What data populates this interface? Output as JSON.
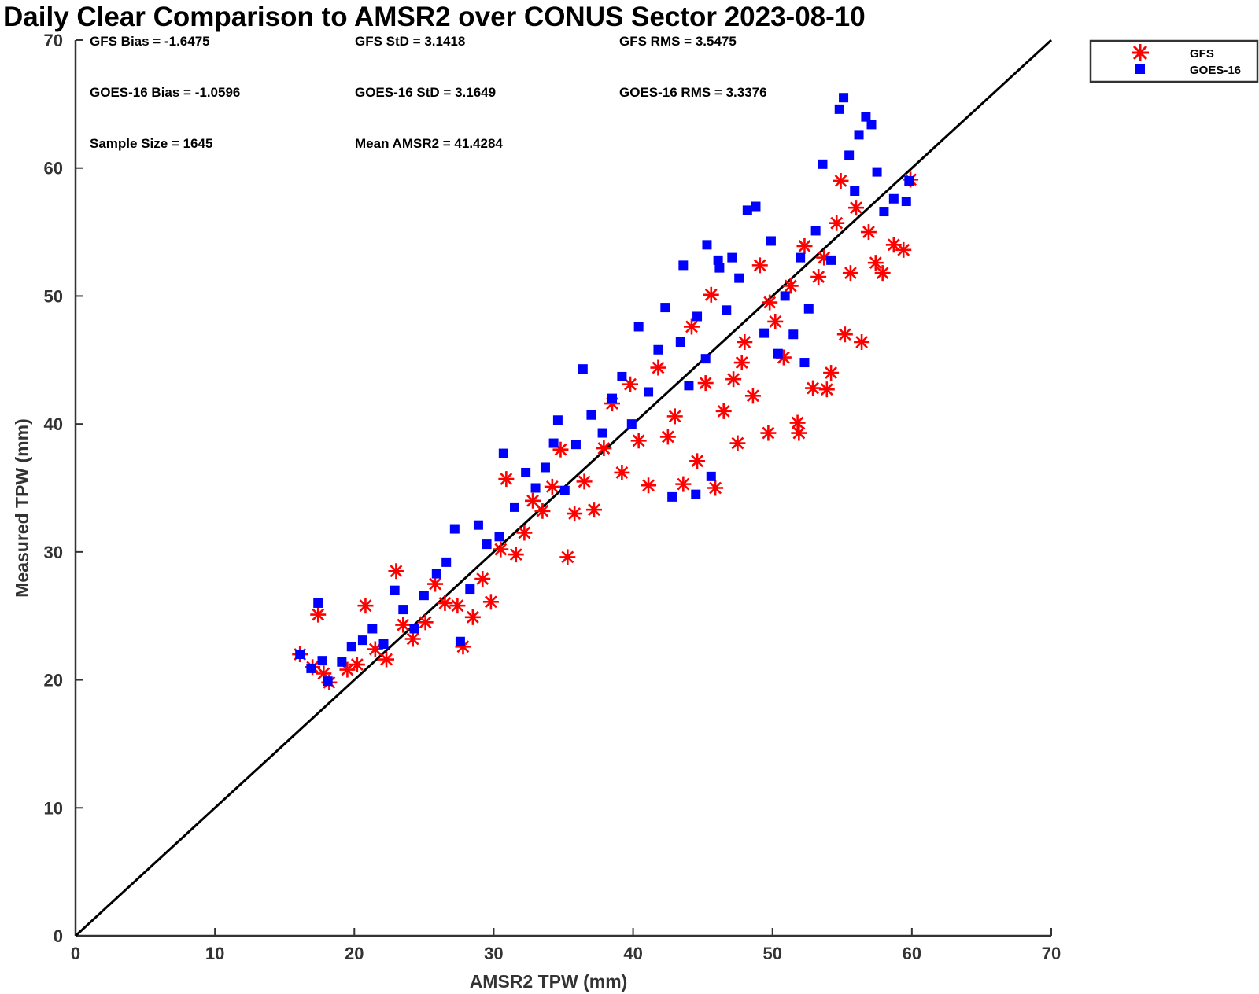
{
  "chart_data": {
    "type": "scatter",
    "title": "Daily Clear Comparison to AMSR2 over CONUS Sector 2023-08-10",
    "xlabel": "AMSR2 TPW (mm)",
    "ylabel": "Measured TPW (mm)",
    "xlim": [
      0,
      70
    ],
    "ylim": [
      0,
      70
    ],
    "xticks": [
      0,
      10,
      20,
      30,
      40,
      50,
      60,
      70
    ],
    "yticks": [
      0,
      10,
      20,
      30,
      40,
      50,
      60,
      70
    ],
    "grid": false,
    "legend_position": "outside top-right",
    "reference_line": {
      "from": [
        0,
        0
      ],
      "to": [
        70,
        70
      ],
      "color": "#000000"
    },
    "stats": {
      "gfs_bias": "GFS Bias = -1.6475",
      "gfs_std": "GFS StD = 3.1418",
      "gfs_rms": "GFS RMS = 3.5475",
      "goes_bias": "GOES-16 Bias = -1.0596",
      "goes_std": "GOES-16 StD = 3.1649",
      "goes_rms": "GOES-16 RMS = 3.3376",
      "sample_size": "Sample Size = 1645",
      "mean_amsr2": "Mean AMSR2 = 41.4284"
    },
    "series": [
      {
        "name": "GFS",
        "marker": "asterisk",
        "color": "#ff0000",
        "points": [
          [
            16.1,
            22.0
          ],
          [
            17.0,
            21.0
          ],
          [
            17.4,
            25.1
          ],
          [
            17.8,
            20.5
          ],
          [
            18.2,
            19.8
          ],
          [
            19.5,
            20.8
          ],
          [
            20.2,
            21.2
          ],
          [
            20.8,
            25.8
          ],
          [
            21.5,
            22.4
          ],
          [
            22.3,
            21.6
          ],
          [
            23.0,
            28.5
          ],
          [
            23.5,
            24.3
          ],
          [
            24.2,
            23.2
          ],
          [
            25.1,
            24.5
          ],
          [
            25.8,
            27.5
          ],
          [
            26.5,
            26.0
          ],
          [
            27.4,
            25.8
          ],
          [
            27.8,
            22.6
          ],
          [
            28.5,
            24.9
          ],
          [
            29.2,
            27.9
          ],
          [
            29.8,
            26.1
          ],
          [
            30.5,
            30.2
          ],
          [
            30.9,
            35.7
          ],
          [
            31.6,
            29.8
          ],
          [
            32.2,
            31.5
          ],
          [
            32.8,
            34.0
          ],
          [
            33.5,
            33.2
          ],
          [
            34.2,
            35.1
          ],
          [
            34.8,
            38.0
          ],
          [
            35.3,
            29.6
          ],
          [
            35.8,
            33.0
          ],
          [
            36.5,
            35.5
          ],
          [
            37.2,
            33.3
          ],
          [
            37.9,
            38.1
          ],
          [
            38.5,
            41.6
          ],
          [
            39.2,
            36.2
          ],
          [
            39.8,
            43.1
          ],
          [
            40.4,
            38.7
          ],
          [
            41.1,
            35.2
          ],
          [
            41.8,
            44.4
          ],
          [
            42.5,
            39.0
          ],
          [
            43.0,
            40.6
          ],
          [
            43.6,
            35.3
          ],
          [
            44.2,
            47.6
          ],
          [
            44.6,
            37.1
          ],
          [
            45.2,
            43.2
          ],
          [
            45.6,
            50.1
          ],
          [
            45.9,
            35.0
          ],
          [
            46.5,
            41.0
          ],
          [
            47.2,
            43.5
          ],
          [
            47.5,
            38.5
          ],
          [
            48.0,
            46.4
          ],
          [
            48.6,
            42.2
          ],
          [
            49.1,
            52.4
          ],
          [
            49.7,
            39.3
          ],
          [
            50.2,
            48.0
          ],
          [
            50.8,
            45.2
          ],
          [
            51.3,
            50.8
          ],
          [
            51.9,
            39.3
          ],
          [
            52.3,
            53.9
          ],
          [
            52.9,
            42.8
          ],
          [
            53.3,
            51.5
          ],
          [
            53.9,
            42.7
          ],
          [
            54.2,
            44.0
          ],
          [
            54.6,
            55.7
          ],
          [
            54.9,
            59.0
          ],
          [
            55.2,
            47.0
          ],
          [
            55.6,
            51.8
          ],
          [
            56.0,
            56.9
          ],
          [
            56.4,
            46.4
          ],
          [
            56.9,
            55.0
          ],
          [
            57.4,
            52.6
          ],
          [
            57.9,
            51.8
          ],
          [
            58.7,
            54.0
          ],
          [
            59.4,
            53.6
          ],
          [
            59.9,
            59.1
          ],
          [
            51.8,
            40.1
          ],
          [
            49.8,
            49.5
          ],
          [
            47.8,
            44.8
          ],
          [
            53.7,
            53.0
          ]
        ]
      },
      {
        "name": "GOES-16",
        "marker": "square",
        "color": "#0000ff",
        "points": [
          [
            16.1,
            22.0
          ],
          [
            16.9,
            20.9
          ],
          [
            17.4,
            26.0
          ],
          [
            17.7,
            21.5
          ],
          [
            18.1,
            19.9
          ],
          [
            19.1,
            21.4
          ],
          [
            19.8,
            22.6
          ],
          [
            20.6,
            23.1
          ],
          [
            21.3,
            24.0
          ],
          [
            22.1,
            22.8
          ],
          [
            22.9,
            27.0
          ],
          [
            23.5,
            25.5
          ],
          [
            24.3,
            24.0
          ],
          [
            25.0,
            26.6
          ],
          [
            25.9,
            28.3
          ],
          [
            26.6,
            29.2
          ],
          [
            27.2,
            31.8
          ],
          [
            27.6,
            23.0
          ],
          [
            28.3,
            27.1
          ],
          [
            28.9,
            32.1
          ],
          [
            29.5,
            30.6
          ],
          [
            30.4,
            31.2
          ],
          [
            30.7,
            37.7
          ],
          [
            31.5,
            33.5
          ],
          [
            32.3,
            36.2
          ],
          [
            33.0,
            35.0
          ],
          [
            33.7,
            36.6
          ],
          [
            34.3,
            38.5
          ],
          [
            34.6,
            40.3
          ],
          [
            35.1,
            34.8
          ],
          [
            35.9,
            38.4
          ],
          [
            36.4,
            44.3
          ],
          [
            37.0,
            40.7
          ],
          [
            37.8,
            39.3
          ],
          [
            38.5,
            42.0
          ],
          [
            39.2,
            43.7
          ],
          [
            39.9,
            40.0
          ],
          [
            40.4,
            47.6
          ],
          [
            41.1,
            42.5
          ],
          [
            41.8,
            45.8
          ],
          [
            42.3,
            49.1
          ],
          [
            42.8,
            34.3
          ],
          [
            43.4,
            46.4
          ],
          [
            44.0,
            43.0
          ],
          [
            44.6,
            48.4
          ],
          [
            45.2,
            45.1
          ],
          [
            45.6,
            35.9
          ],
          [
            46.2,
            52.2
          ],
          [
            46.7,
            48.9
          ],
          [
            47.1,
            53.0
          ],
          [
            47.6,
            51.4
          ],
          [
            48.2,
            56.7
          ],
          [
            48.8,
            57.0
          ],
          [
            49.4,
            47.1
          ],
          [
            49.9,
            54.3
          ],
          [
            50.4,
            45.5
          ],
          [
            50.9,
            50.0
          ],
          [
            51.5,
            47.0
          ],
          [
            52.0,
            53.0
          ],
          [
            52.6,
            49.0
          ],
          [
            53.1,
            55.1
          ],
          [
            53.6,
            60.3
          ],
          [
            54.2,
            52.8
          ],
          [
            54.8,
            64.6
          ],
          [
            55.1,
            65.5
          ],
          [
            55.5,
            61.0
          ],
          [
            55.9,
            58.2
          ],
          [
            56.2,
            62.6
          ],
          [
            56.7,
            64.0
          ],
          [
            57.1,
            63.4
          ],
          [
            57.5,
            59.7
          ],
          [
            58.0,
            56.6
          ],
          [
            58.7,
            57.6
          ],
          [
            59.6,
            57.4
          ],
          [
            59.8,
            59.0
          ],
          [
            44.5,
            34.5
          ],
          [
            45.3,
            54.0
          ],
          [
            43.6,
            52.4
          ],
          [
            46.1,
            52.8
          ],
          [
            52.3,
            44.8
          ]
        ]
      }
    ]
  }
}
